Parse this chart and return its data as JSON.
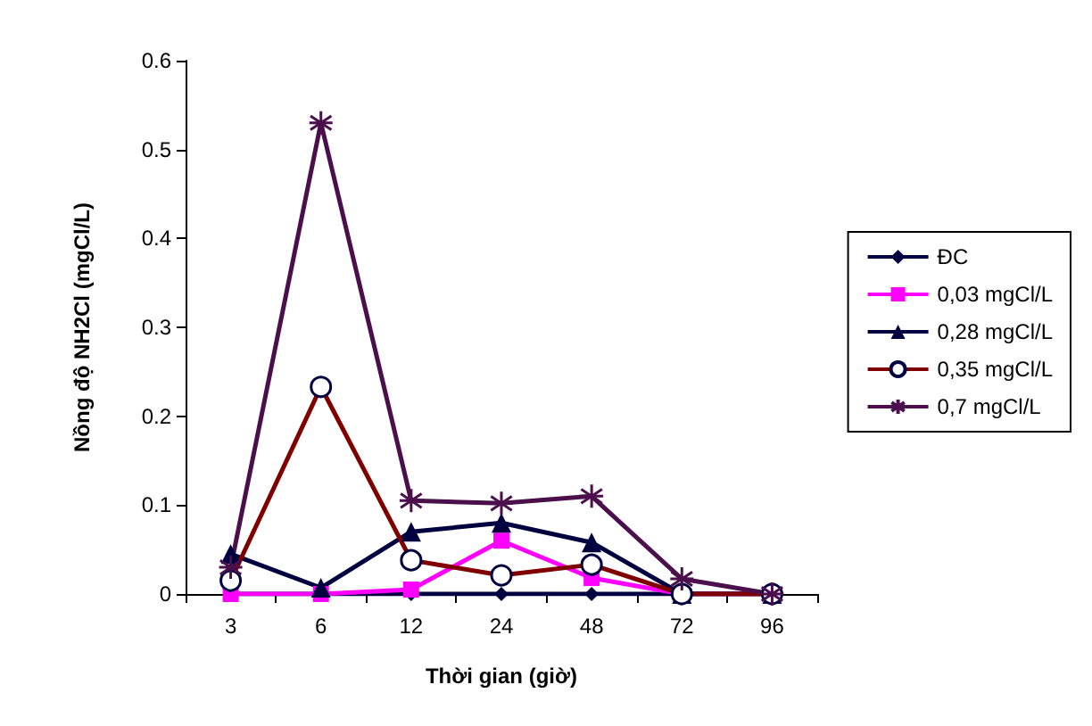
{
  "chart_data": {
    "type": "line",
    "xlabel": "Thời gian (giờ)",
    "ylabel": "Nồng độ NH2Cl (mgCl/L)",
    "categories": [
      "3",
      "6",
      "12",
      "24",
      "48",
      "72",
      "96"
    ],
    "ylim": [
      0,
      0.6
    ],
    "yticks": [
      0,
      0.1,
      0.2,
      0.3,
      0.4,
      0.5,
      0.6
    ],
    "grid": false,
    "legend": "right",
    "line_style": "solid",
    "series": [
      {
        "name": "ĐC",
        "color": "#000040",
        "marker": "diamond",
        "values": [
          0,
          0,
          0,
          0,
          0,
          0,
          0
        ]
      },
      {
        "name": "0,03 mgCl/L",
        "color": "#ff00ff",
        "marker": "square",
        "values": [
          0,
          0,
          0.005,
          0.06,
          0.018,
          0,
          0
        ]
      },
      {
        "name": "0,28 mgCl/L",
        "color": "#000040",
        "marker": "triangle",
        "values": [
          0.045,
          0.007,
          0.07,
          0.08,
          0.058,
          0,
          0
        ]
      },
      {
        "name": "0,35 mgCl/L",
        "color": "#800000",
        "marker": "circle",
        "values": [
          0.015,
          0.233,
          0.038,
          0.021,
          0.033,
          0,
          0
        ]
      },
      {
        "name": "0,7 mgCl/L",
        "color": "#4b0f4b",
        "marker": "cross",
        "values": [
          0.03,
          0.53,
          0.105,
          0.102,
          0.11,
          0.017,
          0
        ]
      }
    ]
  }
}
